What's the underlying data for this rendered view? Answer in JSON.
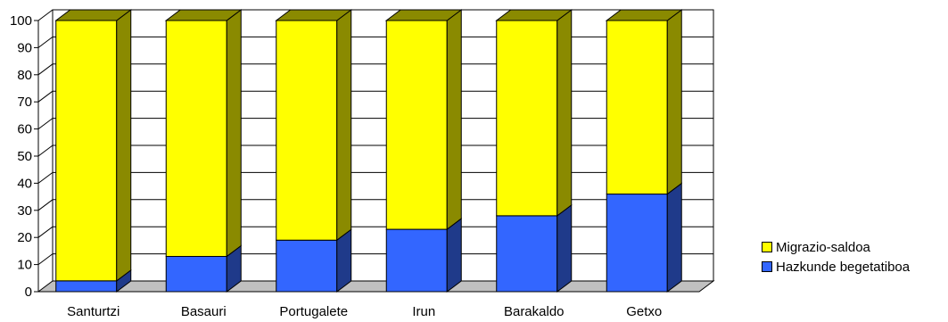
{
  "chart_data": {
    "type": "bar",
    "stacked": true,
    "three_d": true,
    "categories": [
      "Santurtzi",
      "Basauri",
      "Portugalete",
      "Irun",
      "Barakaldo",
      "Getxo"
    ],
    "series": [
      {
        "name": "Hazkunde begetatiboa",
        "color": "#3366ff",
        "side_color": "#1f3a8a",
        "values": [
          4,
          13,
          19,
          23,
          28,
          36
        ]
      },
      {
        "name": "Migrazio-saldoa",
        "color": "#ffff00",
        "side_color": "#8a8a00",
        "values": [
          96,
          87,
          81,
          77,
          72,
          64
        ]
      }
    ],
    "y_ticks": [
      "0",
      "10",
      "20",
      "30",
      "40",
      "50",
      "60",
      "70",
      "80",
      "90",
      "100"
    ],
    "ylim": [
      0,
      100
    ],
    "grid": true,
    "legend_position": "right"
  }
}
